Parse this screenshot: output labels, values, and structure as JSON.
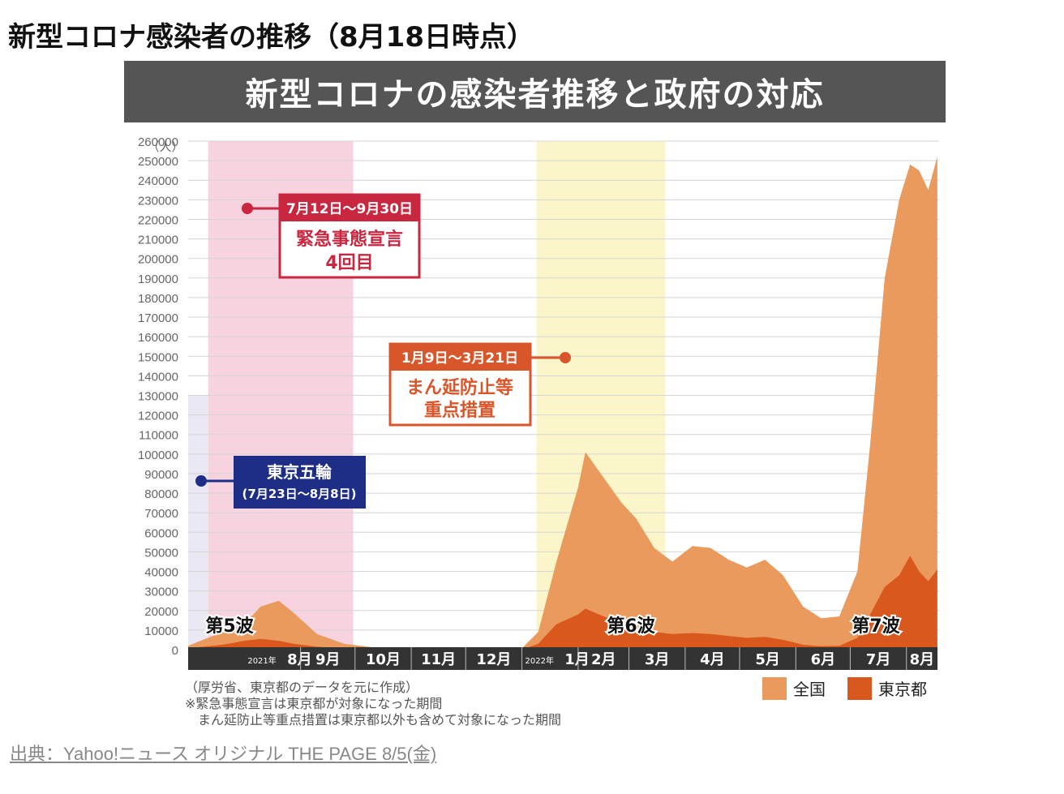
{
  "page_title": "新型コロナ感染者の推移（8月18日時点）",
  "banner_title": "新型コロナの感染者推移と政府の対応",
  "source_link": "出典：Yahoo!ニュース オリジナル THE PAGE  8/5(金)",
  "notes": [
    "（厚労省、東京都のデータを元に作成）",
    "※緊急事態宣言は東京都が対象になった期間",
    "　まん延防止等重点措置は東京都以外も含めて対象になった期間"
  ],
  "annotations": {
    "emergency": {
      "period": "7月12日〜9月30日",
      "line1": "緊急事態宣言",
      "line2": "4回目"
    },
    "manbo": {
      "period": "1月9日〜3月21日",
      "line1": "まん延防止等",
      "line2": "重点措置"
    },
    "olympics": {
      "line1": "東京五輪",
      "line2": "(7月23日〜8月8日)"
    },
    "waves": [
      "第5波",
      "第6波",
      "第7波"
    ]
  },
  "colors": {
    "national": "#ea9a5c",
    "tokyo": "#d9581e",
    "emergency_band": "#f7d3df",
    "olympics_band": "#e9e8f3",
    "manbo_band": "#fbf6c9",
    "emergency_box": "#c9263f",
    "manbo_box": "#d9552a",
    "olympics_box": "#1e2e86"
  },
  "chart_data": {
    "type": "area",
    "y_unit": "（人）",
    "ylim": [
      0,
      260000
    ],
    "y_ticks": [
      "0",
      "10000",
      "20000",
      "30000",
      "40000",
      "50000",
      "60000",
      "70000",
      "80000",
      "90000",
      "100000",
      "110000",
      "120000",
      "130000",
      "140000",
      "150000",
      "160000",
      "170000",
      "180000",
      "190000",
      "200000",
      "210000",
      "220000",
      "230000",
      "240000",
      "250000",
      "260000"
    ],
    "x_months": [
      {
        "label": "8月",
        "year": "2021年"
      },
      {
        "label": "9月"
      },
      {
        "label": "10月"
      },
      {
        "label": "11月"
      },
      {
        "label": "12月"
      },
      {
        "label": "1月",
        "year": "2022年"
      },
      {
        "label": "2月"
      },
      {
        "label": "3月"
      },
      {
        "label": "4月"
      },
      {
        "label": "5月"
      },
      {
        "label": "6月"
      },
      {
        "label": "7月"
      },
      {
        "label": "8月"
      }
    ],
    "grid": true,
    "legend": "bottom-right",
    "series": [
      {
        "name": "全国",
        "x": [
          "2021-07-01",
          "2021-07-20",
          "2021-08-01",
          "2021-08-10",
          "2021-08-20",
          "2021-08-28",
          "2021-09-10",
          "2021-09-25",
          "2021-10-15",
          "2021-11-15",
          "2021-12-15",
          "2022-01-01",
          "2022-01-10",
          "2022-01-20",
          "2022-02-01",
          "2022-02-05",
          "2022-02-15",
          "2022-02-25",
          "2022-03-05",
          "2022-03-15",
          "2022-03-25",
          "2022-04-05",
          "2022-04-15",
          "2022-04-25",
          "2022-05-05",
          "2022-05-15",
          "2022-05-25",
          "2022-06-05",
          "2022-06-15",
          "2022-06-25",
          "2022-07-05",
          "2022-07-12",
          "2022-07-20",
          "2022-07-28",
          "2022-08-03",
          "2022-08-08",
          "2022-08-13",
          "2022-08-18"
        ],
        "values": [
          2000,
          9000,
          13000,
          22000,
          25000,
          19000,
          8000,
          3000,
          700,
          150,
          250,
          700,
          9000,
          45000,
          83000,
          101000,
          88000,
          75000,
          67000,
          52000,
          45000,
          53000,
          52000,
          46000,
          42000,
          46000,
          38000,
          22000,
          16000,
          17000,
          40000,
          105000,
          190000,
          230000,
          248000,
          245000,
          235000,
          252000
        ]
      },
      {
        "name": "東京都",
        "x": [
          "2021-07-01",
          "2021-07-20",
          "2021-08-01",
          "2021-08-10",
          "2021-08-20",
          "2021-08-28",
          "2021-09-10",
          "2021-09-25",
          "2021-10-15",
          "2021-11-15",
          "2021-12-15",
          "2022-01-01",
          "2022-01-10",
          "2022-01-20",
          "2022-02-01",
          "2022-02-05",
          "2022-02-15",
          "2022-02-25",
          "2022-03-05",
          "2022-03-15",
          "2022-03-25",
          "2022-04-05",
          "2022-04-15",
          "2022-04-25",
          "2022-05-05",
          "2022-05-15",
          "2022-05-25",
          "2022-06-05",
          "2022-06-15",
          "2022-06-25",
          "2022-07-05",
          "2022-07-12",
          "2022-07-20",
          "2022-07-28",
          "2022-08-03",
          "2022-08-08",
          "2022-08-13",
          "2022-08-18"
        ],
        "values": [
          800,
          2500,
          4500,
          5500,
          4500,
          3000,
          1500,
          500,
          100,
          30,
          50,
          100,
          3000,
          13000,
          18000,
          21000,
          17000,
          14000,
          11000,
          9000,
          8000,
          8500,
          8000,
          7000,
          6000,
          6500,
          5000,
          2500,
          1800,
          2000,
          6000,
          18000,
          32000,
          38000,
          48000,
          40000,
          35000,
          41000
        ]
      }
    ]
  }
}
